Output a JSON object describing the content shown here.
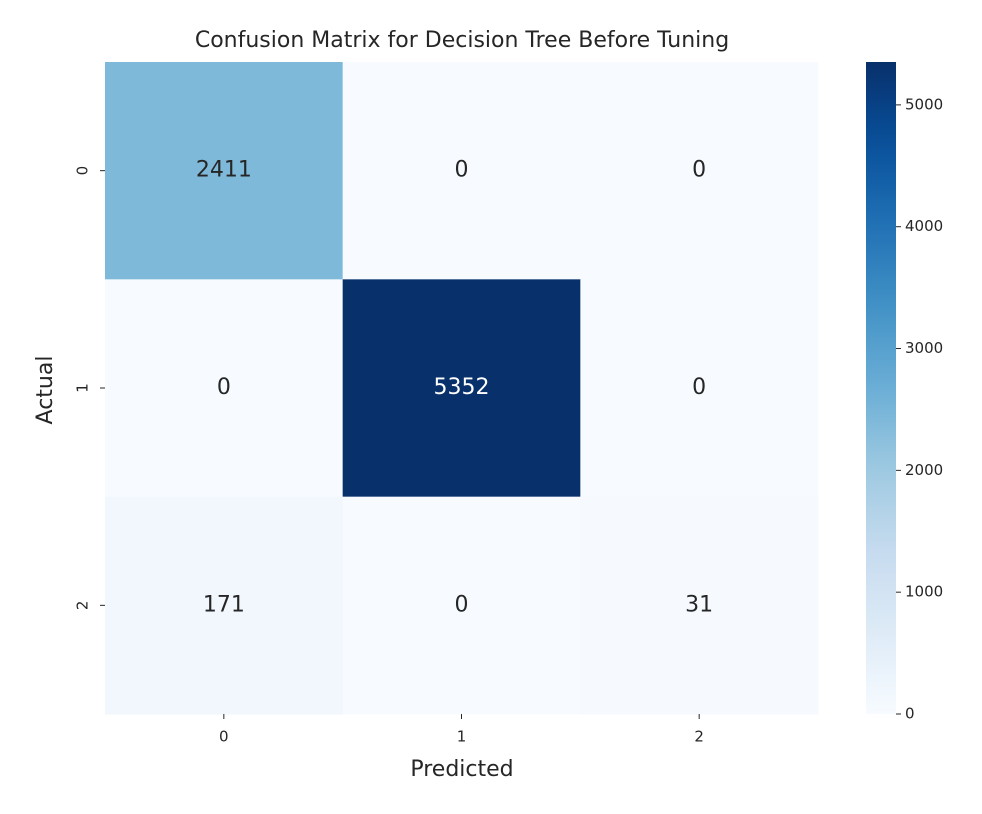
{
  "chart_data": {
    "type": "heatmap",
    "title": "Confusion Matrix for Decision Tree Before Tuning",
    "xlabel": "Predicted",
    "ylabel": "Actual",
    "x_categories": [
      "0",
      "1",
      "2"
    ],
    "y_categories": [
      "0",
      "1",
      "2"
    ],
    "values": [
      [
        2411,
        0,
        0
      ],
      [
        0,
        5352,
        0
      ],
      [
        171,
        0,
        31
      ]
    ],
    "colormap": "Blues",
    "zlim": [
      0,
      5352
    ],
    "zticks": [
      0,
      1000,
      2000,
      3000,
      4000,
      5000
    ]
  }
}
